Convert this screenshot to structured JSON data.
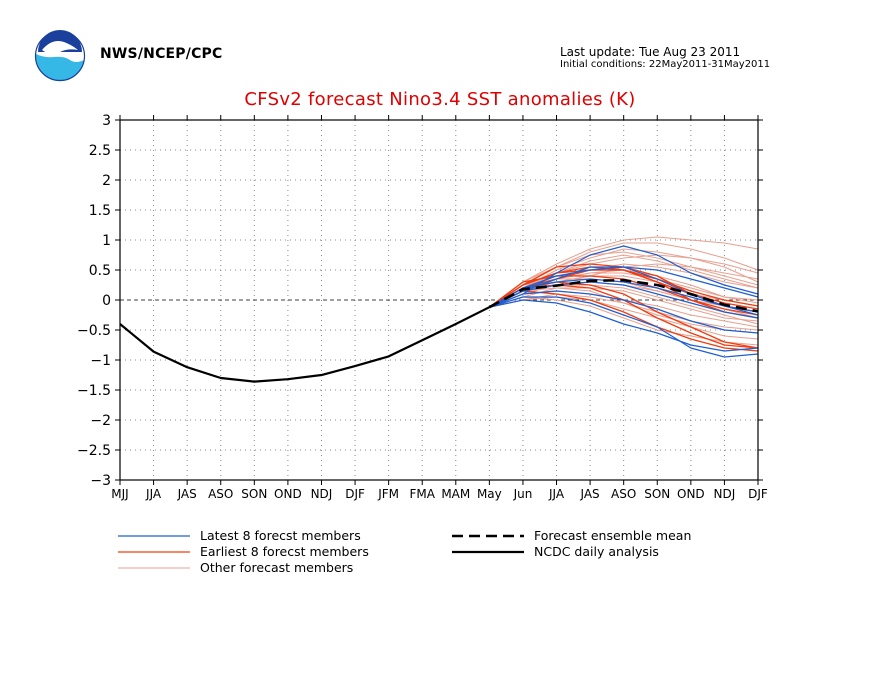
{
  "header": {
    "org": "NWS/NCEP/CPC",
    "last_update": "Last update: Tue Aug 23 2011",
    "initial_conditions": "Initial conditions: 22May2011-31May2011"
  },
  "colors": {
    "latest": "#1f5fd1",
    "earliest": "#f03c10",
    "other": "#e8a090",
    "mean": "#000000",
    "analysis": "#000000",
    "title": "#e00000"
  },
  "chart_data": {
    "type": "line",
    "title": "CFSv2 forecast Nino3.4 SST anomalies (K)",
    "xlabel": "",
    "ylabel": "",
    "categories": [
      "MJJ",
      "JJA",
      "JAS",
      "ASO",
      "SON",
      "OND",
      "NDJ",
      "DJF",
      "JFM",
      "FMA",
      "MAM",
      "May",
      "Jun",
      "JJA",
      "JAS",
      "ASO",
      "SON",
      "OND",
      "NDJ",
      "DJF"
    ],
    "ylim": [
      -3,
      3
    ],
    "yticks": [
      3,
      2.5,
      2,
      1.5,
      1,
      0.5,
      0,
      -0.5,
      -1,
      -1.5,
      -2,
      -2.5,
      -3
    ],
    "grid": true,
    "legend": "bottom",
    "analysis": {
      "name": "NCDC daily analysis",
      "x": [
        0,
        1,
        2,
        3,
        4,
        5,
        6,
        7,
        8,
        9,
        10,
        11
      ],
      "values": [
        -0.4,
        -0.86,
        -1.12,
        -1.3,
        -1.36,
        -1.32,
        -1.25,
        -1.1,
        -0.94,
        -0.67,
        -0.4,
        -0.12
      ]
    },
    "ensemble_mean": {
      "name": "Forecast ensemble mean",
      "x": [
        11,
        12,
        13,
        14,
        15,
        16,
        17,
        18,
        19
      ],
      "values": [
        -0.12,
        0.18,
        0.24,
        0.32,
        0.33,
        0.25,
        0.1,
        -0.08,
        -0.19
      ]
    },
    "forecast_x": [
      11,
      12,
      13,
      14,
      15,
      16,
      17,
      18,
      19
    ],
    "latest_members": {
      "name": "Latest 8 forecst members",
      "members": [
        [
          -0.12,
          0.1,
          0.45,
          0.75,
          0.9,
          0.75,
          0.45,
          0.25,
          0.1
        ],
        [
          -0.12,
          0.05,
          0.05,
          -0.05,
          -0.25,
          -0.45,
          -0.8,
          -0.95,
          -0.9
        ],
        [
          -0.12,
          0.15,
          0.35,
          0.55,
          0.55,
          0.35,
          0.1,
          -0.1,
          -0.25
        ],
        [
          -0.12,
          0.0,
          -0.05,
          -0.2,
          -0.4,
          -0.55,
          -0.75,
          -0.85,
          -0.8
        ],
        [
          -0.12,
          0.2,
          0.4,
          0.5,
          0.55,
          0.5,
          0.35,
          0.2,
          0.05
        ],
        [
          -0.12,
          0.15,
          0.25,
          0.3,
          0.25,
          0.1,
          -0.05,
          -0.2,
          -0.3
        ],
        [
          -0.12,
          0.1,
          0.15,
          0.1,
          0.0,
          -0.15,
          -0.35,
          -0.5,
          -0.55
        ],
        [
          -0.12,
          0.2,
          0.3,
          0.35,
          0.3,
          0.2,
          0.05,
          -0.1,
          -0.2
        ]
      ]
    },
    "earliest_members": {
      "name": "Earliest 8 forecst members",
      "members": [
        [
          -0.12,
          0.25,
          0.55,
          0.6,
          0.55,
          0.4,
          0.1,
          -0.1,
          -0.2
        ],
        [
          -0.12,
          0.2,
          0.35,
          0.5,
          0.5,
          0.3,
          0.0,
          -0.2,
          -0.3
        ],
        [
          -0.12,
          0.25,
          0.45,
          0.5,
          0.5,
          0.35,
          0.15,
          0.0,
          -0.1
        ],
        [
          -0.12,
          0.15,
          0.1,
          0.0,
          -0.2,
          -0.45,
          -0.65,
          -0.8,
          -0.85
        ],
        [
          -0.12,
          0.2,
          0.3,
          0.25,
          0.1,
          -0.2,
          -0.45,
          -0.7,
          -0.8
        ],
        [
          -0.12,
          0.3,
          0.4,
          0.4,
          0.35,
          0.2,
          0.0,
          -0.15,
          -0.25
        ],
        [
          -0.12,
          0.2,
          0.25,
          0.2,
          0.0,
          -0.3,
          -0.55,
          -0.75,
          -0.8
        ],
        [
          -0.12,
          0.25,
          0.45,
          0.55,
          0.5,
          0.3,
          0.1,
          -0.05,
          -0.15
        ]
      ]
    },
    "other_members": {
      "name": "Other forecast members",
      "members": [
        [
          -0.12,
          0.3,
          0.6,
          0.85,
          1.0,
          1.05,
          1.0,
          0.95,
          0.85
        ],
        [
          -0.12,
          0.25,
          0.55,
          0.8,
          0.95,
          0.95,
          0.85,
          0.7,
          0.5
        ],
        [
          -0.12,
          0.2,
          0.5,
          0.7,
          0.85,
          0.8,
          0.7,
          0.6,
          0.45
        ],
        [
          -0.12,
          0.15,
          0.45,
          0.6,
          0.7,
          0.75,
          0.7,
          0.55,
          0.3
        ],
        [
          -0.12,
          0.2,
          0.4,
          0.5,
          0.6,
          0.55,
          0.45,
          0.3,
          0.2
        ],
        [
          -0.12,
          0.1,
          0.35,
          0.45,
          0.5,
          0.4,
          0.25,
          0.05,
          -0.05
        ],
        [
          -0.12,
          0.15,
          0.3,
          0.4,
          0.4,
          0.3,
          0.1,
          0.0,
          -0.1
        ],
        [
          -0.12,
          0.2,
          0.25,
          0.3,
          0.25,
          0.15,
          0.0,
          -0.1,
          -0.2
        ],
        [
          -0.12,
          0.05,
          0.2,
          0.2,
          0.15,
          0.0,
          -0.15,
          -0.3,
          -0.35
        ],
        [
          -0.12,
          0.1,
          0.15,
          0.1,
          0.0,
          -0.1,
          -0.25,
          -0.35,
          -0.45
        ],
        [
          -0.12,
          0.0,
          0.05,
          0.0,
          -0.15,
          -0.3,
          -0.45,
          -0.6,
          -0.65
        ],
        [
          -0.12,
          0.05,
          0.0,
          -0.1,
          -0.3,
          -0.5,
          -0.6,
          -0.7,
          -0.75
        ],
        [
          -0.12,
          0.15,
          0.2,
          0.15,
          -0.05,
          -0.25,
          -0.4,
          -0.5,
          -0.55
        ],
        [
          -0.12,
          0.25,
          0.35,
          0.35,
          0.3,
          0.15,
          0.0,
          -0.15,
          -0.3
        ],
        [
          -0.12,
          0.2,
          0.45,
          0.65,
          0.75,
          0.65,
          0.5,
          0.35,
          0.2
        ],
        [
          -0.12,
          0.3,
          0.55,
          0.75,
          0.8,
          0.7,
          0.55,
          0.4,
          0.25
        ],
        [
          -0.12,
          0.1,
          0.25,
          0.25,
          0.2,
          0.05,
          -0.1,
          -0.25,
          -0.4
        ],
        [
          -0.12,
          0.15,
          0.35,
          0.45,
          0.45,
          0.35,
          0.2,
          0.05,
          0.0
        ],
        [
          -0.12,
          0.0,
          0.1,
          0.05,
          -0.05,
          -0.2,
          -0.35,
          -0.45,
          -0.5
        ],
        [
          -0.12,
          0.2,
          0.3,
          0.4,
          0.55,
          0.6,
          0.55,
          0.45,
          0.35
        ]
      ]
    }
  }
}
